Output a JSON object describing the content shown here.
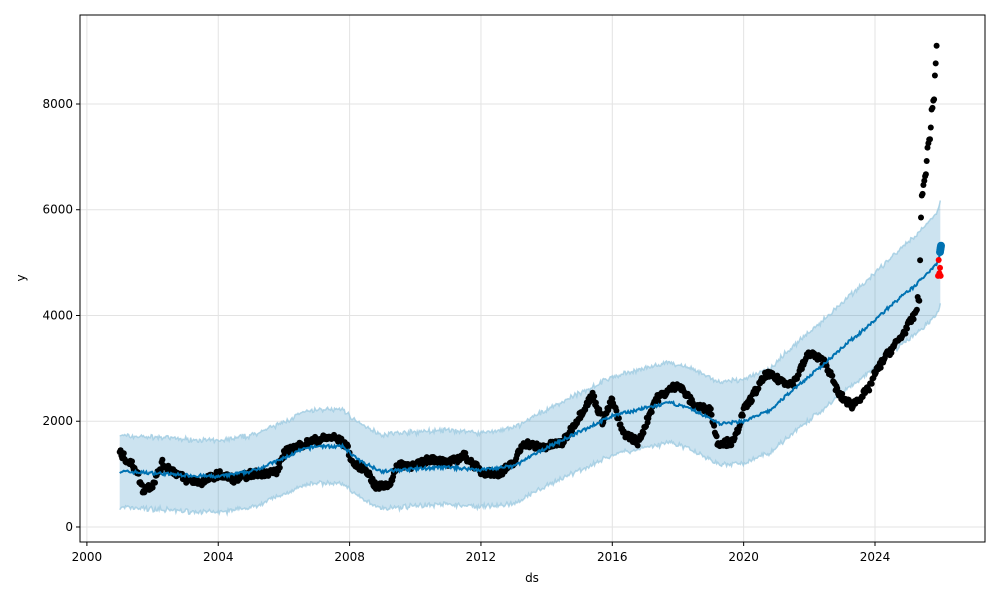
{
  "chart_data": {
    "type": "line",
    "title": "",
    "xlabel": "ds",
    "ylabel": "y",
    "xlim": [
      1999.79,
      2027.35
    ],
    "ylim": [
      -284,
      9683
    ],
    "grid": true,
    "x_ticks": [
      2000,
      2004,
      2008,
      2012,
      2016,
      2020,
      2024
    ],
    "x_tick_labels": [
      "2000",
      "2004",
      "2008",
      "2012",
      "2016",
      "2020",
      "2024"
    ],
    "y_ticks": [
      0,
      2000,
      4000,
      6000,
      8000
    ],
    "y_tick_labels": [
      "0",
      "2000",
      "4000",
      "6000",
      "8000"
    ],
    "colors": {
      "forecast": "#0072B2",
      "band": "#0072B2",
      "observed": "#000000",
      "test": "#ff0000"
    },
    "forecast": {
      "x": [
        2001.0,
        2002.0,
        2003.0,
        2004.0,
        2005.0,
        2006.0,
        2006.5,
        2007.0,
        2007.8,
        2008.3,
        2009.0,
        2010.0,
        2011.0,
        2012.0,
        2013.0,
        2014.0,
        2015.0,
        2016.0,
        2017.0,
        2017.8,
        2018.5,
        2019.3,
        2020.0,
        2020.8,
        2021.5,
        2022.3,
        2023.0,
        2023.8,
        2024.5,
        2025.2,
        2025.9,
        2026.0
      ],
      "yhat": [
        1050,
        1020,
        980,
        950,
        1050,
        1300,
        1450,
        1530,
        1520,
        1250,
        1050,
        1100,
        1130,
        1080,
        1150,
        1500,
        1800,
        2100,
        2250,
        2350,
        2200,
        1950,
        2000,
        2200,
        2600,
        3000,
        3400,
        3800,
        4200,
        4550,
        5000,
        5200
      ],
      "half_width": [
        680,
        680,
        680,
        680,
        680,
        680,
        690,
        690,
        700,
        700,
        700,
        700,
        700,
        700,
        720,
        720,
        730,
        740,
        750,
        760,
        770,
        780,
        790,
        800,
        820,
        840,
        860,
        880,
        900,
        930,
        960,
        980
      ]
    },
    "observed": {
      "x": [
        2001.0,
        2001.5,
        2001.7,
        2002.0,
        2002.3,
        2003.0,
        2003.5,
        2004.0,
        2004.5,
        2005.0,
        2005.8,
        2006.0,
        2006.5,
        2007.0,
        2007.5,
        2007.9,
        2008.1,
        2008.5,
        2008.8,
        2009.2,
        2009.5,
        2010.0,
        2010.5,
        2011.0,
        2011.5,
        2012.0,
        2012.5,
        2013.0,
        2013.3,
        2013.8,
        2014.5,
        2015.0,
        2015.4,
        2015.7,
        2016.0,
        2016.3,
        2016.8,
        2017.3,
        2018.0,
        2018.5,
        2019.0,
        2019.2,
        2019.7,
        2020.0,
        2020.3,
        2020.7,
        2021.0,
        2021.5,
        2022.0,
        2022.5,
        2022.9,
        2023.3,
        2023.8,
        2024.0,
        2024.3,
        2024.8,
        2025.2,
        2025.35,
        2025.4,
        2025.55,
        2025.7,
        2025.8,
        2025.88
      ],
      "y": [
        1400,
        1100,
        700,
        800,
        1200,
        900,
        850,
        1000,
        900,
        1000,
        1050,
        1400,
        1550,
        1650,
        1700,
        1550,
        1200,
        1100,
        750,
        800,
        1200,
        1150,
        1300,
        1200,
        1350,
        1050,
        1000,
        1200,
        1600,
        1500,
        1600,
        2100,
        2500,
        2000,
        2400,
        1800,
        1600,
        2400,
        2700,
        2300,
        2200,
        1600,
        1600,
        2200,
        2500,
        2900,
        2800,
        2700,
        3300,
        3100,
        2500,
        2300,
        2600,
        2900,
        3200,
        3600,
        4000,
        4300,
        6000,
        6800,
        7600,
        8200,
        9200
      ]
    },
    "test": {
      "x": [
        2025.92,
        2025.94,
        2025.96,
        2025.98,
        2026.0
      ],
      "y": [
        4750,
        5050,
        4800,
        4900,
        4750
      ]
    }
  }
}
